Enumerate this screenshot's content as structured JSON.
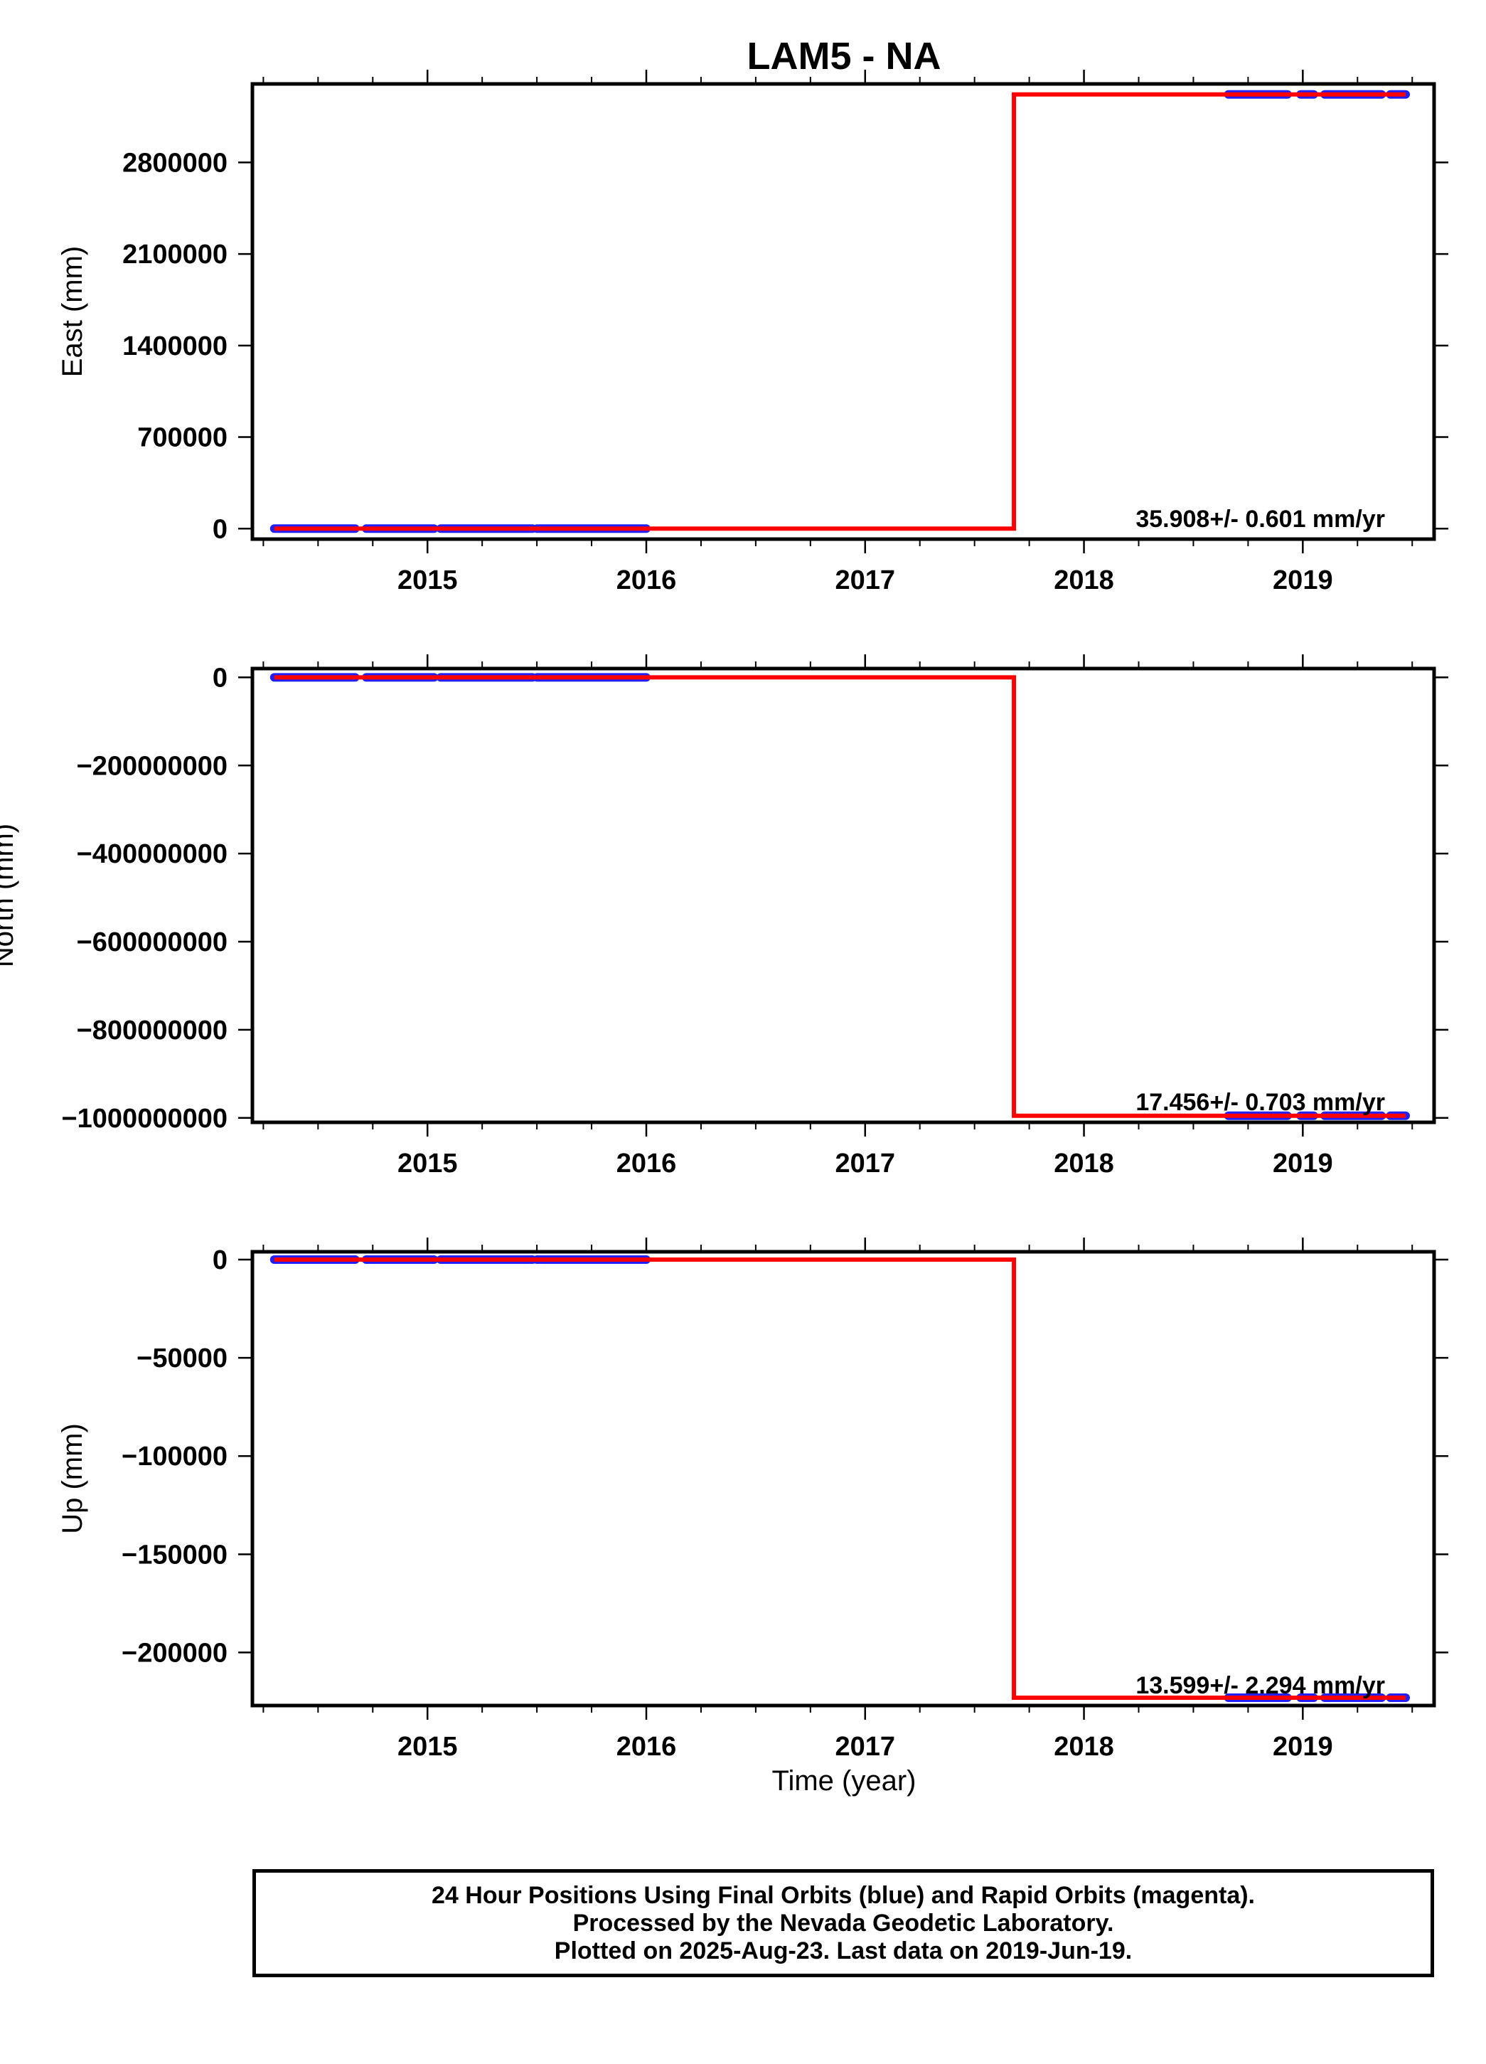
{
  "title": "LAM5 - NA",
  "xlabel": "Time (year)",
  "footer": {
    "line1": "24 Hour Positions Using Final Orbits (blue) and Rapid Orbits (magenta).",
    "line2": "Processed by the Nevada Geodetic Laboratory.",
    "line3": "Plotted on 2025-Aug-23. Last data on 2019-Jun-19."
  },
  "colors": {
    "final_orbits": "#1f1fff",
    "rapid_orbits": "#ff00ff",
    "model": "#ff0000",
    "axes": "#000000"
  },
  "chart_data": [
    {
      "type": "scatter",
      "panel": "east",
      "ylabel": "East (mm)",
      "rate_text": "35.908+/- 0.601 mm/yr",
      "xlim": [
        2014.2,
        2019.6
      ],
      "ylim": [
        -80000,
        3400000
      ],
      "xticks": [
        "2015",
        "2016",
        "2017",
        "2018",
        "2019"
      ],
      "yticks": [
        "0",
        "700000",
        "1400000",
        "2100000",
        "2800000"
      ],
      "ytick_values": [
        0,
        700000,
        1400000,
        2100000,
        2800000
      ],
      "data_segments": [
        {
          "x": [
            2014.3,
            2014.67
          ],
          "y": [
            0,
            0
          ]
        },
        {
          "x": [
            2014.72,
            2015.03
          ],
          "y": [
            0,
            0
          ]
        },
        {
          "x": [
            2015.06,
            2015.48
          ],
          "y": [
            0,
            0
          ]
        },
        {
          "x": [
            2015.5,
            2016.0
          ],
          "y": [
            0,
            0
          ]
        },
        {
          "x": [
            2018.66,
            2018.93
          ],
          "y": [
            3320000,
            3320000
          ]
        },
        {
          "x": [
            2018.99,
            2019.05
          ],
          "y": [
            3320000,
            3320000
          ]
        },
        {
          "x": [
            2019.1,
            2019.36
          ],
          "y": [
            3320000,
            3320000
          ]
        },
        {
          "x": [
            2019.4,
            2019.47
          ],
          "y": [
            3320000,
            3320000
          ]
        }
      ],
      "model_line": {
        "x": [
          2014.3,
          2017.68,
          2017.68,
          2019.47
        ],
        "y": [
          0,
          0,
          3320000,
          3320000
        ]
      }
    },
    {
      "type": "scatter",
      "panel": "north",
      "ylabel": "North (mm)",
      "rate_text": "17.456+/- 0.703 mm/yr",
      "xlim": [
        2014.2,
        2019.6
      ],
      "ylim": [
        -1010000000,
        20000000
      ],
      "xticks": [
        "2015",
        "2016",
        "2017",
        "2018",
        "2019"
      ],
      "yticks": [
        "0",
        "−200000000",
        "−400000000",
        "−600000000",
        "−800000000",
        "−1000000000"
      ],
      "ytick_values": [
        0,
        -200000000,
        -400000000,
        -600000000,
        -800000000,
        -1000000000
      ],
      "data_segments": [
        {
          "x": [
            2014.3,
            2014.67
          ],
          "y": [
            0,
            0
          ]
        },
        {
          "x": [
            2014.72,
            2015.03
          ],
          "y": [
            0,
            0
          ]
        },
        {
          "x": [
            2015.06,
            2015.48
          ],
          "y": [
            0,
            0
          ]
        },
        {
          "x": [
            2015.5,
            2016.0
          ],
          "y": [
            0,
            0
          ]
        },
        {
          "x": [
            2018.66,
            2018.93
          ],
          "y": [
            -995000000,
            -995000000
          ]
        },
        {
          "x": [
            2018.99,
            2019.05
          ],
          "y": [
            -995000000,
            -995000000
          ]
        },
        {
          "x": [
            2019.1,
            2019.36
          ],
          "y": [
            -995000000,
            -995000000
          ]
        },
        {
          "x": [
            2019.4,
            2019.47
          ],
          "y": [
            -995000000,
            -995000000
          ]
        }
      ],
      "model_line": {
        "x": [
          2014.3,
          2017.68,
          2017.68,
          2019.47
        ],
        "y": [
          0,
          0,
          -995000000,
          -995000000
        ]
      }
    },
    {
      "type": "scatter",
      "panel": "up",
      "ylabel": "Up (mm)",
      "rate_text": "13.599+/- 2.294 mm/yr",
      "xlim": [
        2014.2,
        2019.6
      ],
      "ylim": [
        -227000,
        4000
      ],
      "xticks": [
        "2015",
        "2016",
        "2017",
        "2018",
        "2019"
      ],
      "yticks": [
        "0",
        "−50000",
        "−100000",
        "−150000",
        "−200000"
      ],
      "ytick_values": [
        0,
        -50000,
        -100000,
        -150000,
        -200000
      ],
      "data_segments": [
        {
          "x": [
            2014.3,
            2014.67
          ],
          "y": [
            0,
            0
          ]
        },
        {
          "x": [
            2014.72,
            2015.03
          ],
          "y": [
            0,
            0
          ]
        },
        {
          "x": [
            2015.06,
            2015.48
          ],
          "y": [
            0,
            0
          ]
        },
        {
          "x": [
            2015.5,
            2016.0
          ],
          "y": [
            0,
            0
          ]
        },
        {
          "x": [
            2018.66,
            2018.93
          ],
          "y": [
            -223000,
            -223000
          ]
        },
        {
          "x": [
            2018.99,
            2019.05
          ],
          "y": [
            -223000,
            -223000
          ]
        },
        {
          "x": [
            2019.1,
            2019.36
          ],
          "y": [
            -223000,
            -223000
          ]
        },
        {
          "x": [
            2019.4,
            2019.47
          ],
          "y": [
            -223000,
            -223000
          ]
        }
      ],
      "model_line": {
        "x": [
          2014.3,
          2017.68,
          2017.68,
          2019.47
        ],
        "y": [
          0,
          0,
          -223000,
          -223000
        ]
      }
    }
  ]
}
